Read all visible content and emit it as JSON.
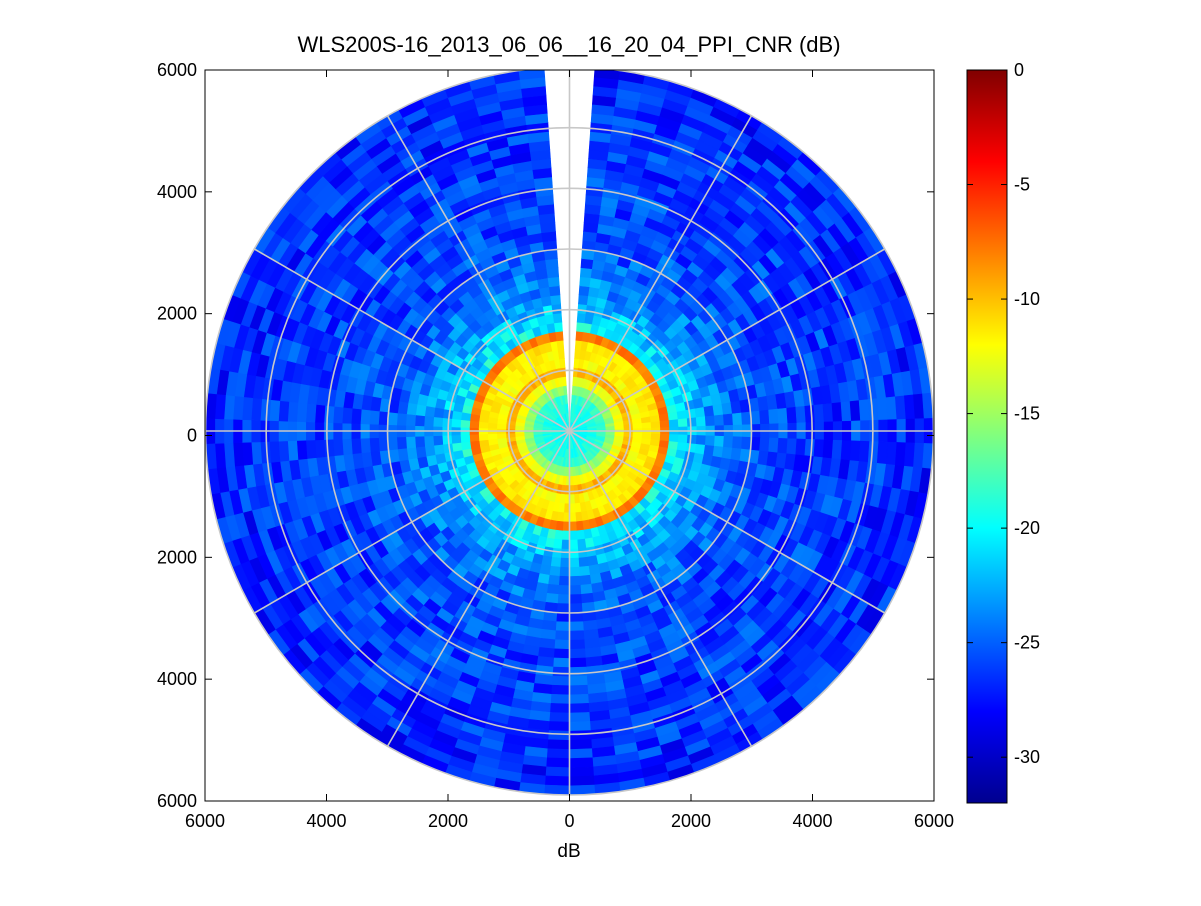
{
  "chart_data": {
    "type": "heatmap",
    "subtype": "polar-ppi",
    "title": "WLS200S-16_2013_06_06__16_20_04_PPI_CNR (dB)",
    "xlabel": "dB",
    "ylabel": "",
    "xlim": [
      -6000,
      6000
    ],
    "ylim": [
      -6000,
      6000
    ],
    "x_ticks": [
      "6000",
      "4000",
      "2000",
      "0",
      "2000",
      "4000",
      "6000"
    ],
    "y_ticks": [
      "6000",
      "4000",
      "2000",
      "0",
      "2000",
      "4000",
      "6000"
    ],
    "x_tick_values": [
      -6000,
      -4000,
      -2000,
      0,
      2000,
      4000,
      6000
    ],
    "y_tick_values": [
      6000,
      4000,
      2000,
      0,
      -2000,
      -4000,
      -6000
    ],
    "max_range": 6000,
    "range_rings": [
      1000,
      2000,
      3000,
      4000,
      5000,
      6000
    ],
    "spoke_interval_deg": 30,
    "missing_sector_deg": [
      -4,
      4
    ],
    "grid": true,
    "colormap": "jet",
    "colorbar": {
      "label": "",
      "placement": "right",
      "clim": [
        -32,
        0
      ],
      "ticks": [
        "0",
        "-5",
        "-10",
        "-15",
        "-20",
        "-25",
        "-30"
      ],
      "tick_values": [
        0,
        -5,
        -10,
        -15,
        -20,
        -25,
        -30
      ]
    },
    "radial_profile_db": [
      {
        "range": 0,
        "value": -20
      },
      {
        "range": 500,
        "value": -19
      },
      {
        "range": 800,
        "value": -13
      },
      {
        "range": 950,
        "value": -9
      },
      {
        "range": 1100,
        "value": -12
      },
      {
        "range": 1550,
        "value": -11
      },
      {
        "range": 1620,
        "value": -2
      },
      {
        "range": 1700,
        "value": -20
      },
      {
        "range": 2200,
        "value": -23
      },
      {
        "range": 3000,
        "value": -25.5
      },
      {
        "range": 6000,
        "value": -27
      }
    ]
  }
}
